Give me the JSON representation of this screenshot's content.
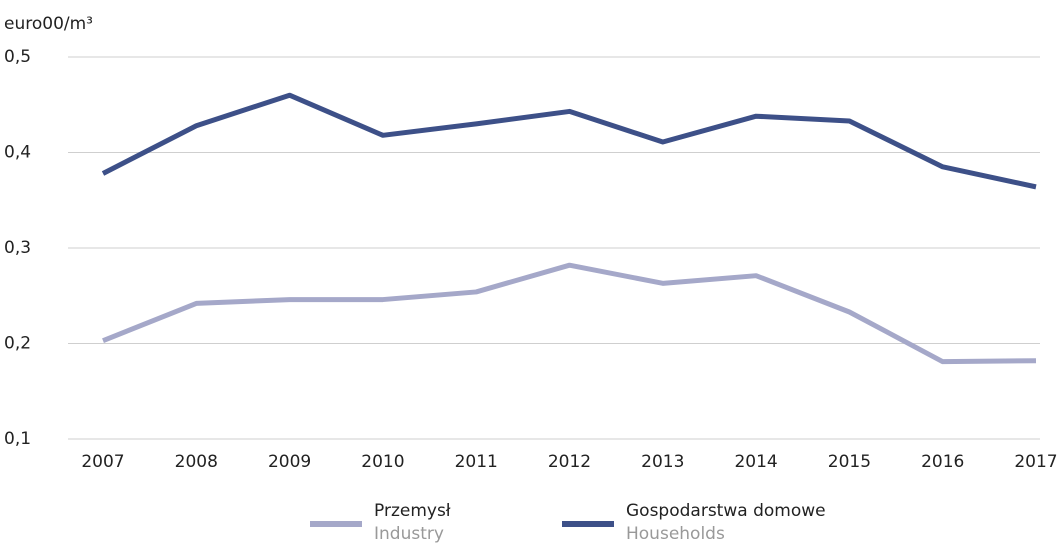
{
  "chart_data": {
    "type": "line",
    "y_label": "euro00/m³",
    "x": [
      2007,
      2008,
      2009,
      2010,
      2011,
      2012,
      2013,
      2014,
      2015,
      2016,
      2017
    ],
    "xlim": [
      2007,
      2017
    ],
    "xticks": [
      2007,
      2008,
      2009,
      2010,
      2011,
      2012,
      2013,
      2014,
      2015,
      2016,
      2017
    ],
    "ylim": [
      0.1,
      0.5
    ],
    "yticks": [
      {
        "value": 0.1,
        "label": "0,1"
      },
      {
        "value": 0.2,
        "label": "0,2"
      },
      {
        "value": 0.3,
        "label": "0,3"
      },
      {
        "value": 0.4,
        "label": "0,4"
      },
      {
        "value": 0.5,
        "label": "0,5"
      }
    ],
    "grid": true,
    "series": [
      {
        "name": "Przemysł",
        "name_en": "Industry",
        "color": "#a5a8c9",
        "values": [
          0.203,
          0.242,
          0.246,
          0.246,
          0.254,
          0.282,
          0.263,
          0.271,
          0.233,
          0.181,
          0.182
        ]
      },
      {
        "name": "Gospodarstwa domowe",
        "name_en": "Households",
        "color": "#3d5088",
        "values": [
          0.378,
          0.428,
          0.46,
          0.418,
          0.43,
          0.443,
          0.411,
          0.438,
          0.433,
          0.385,
          0.364
        ]
      }
    ]
  }
}
